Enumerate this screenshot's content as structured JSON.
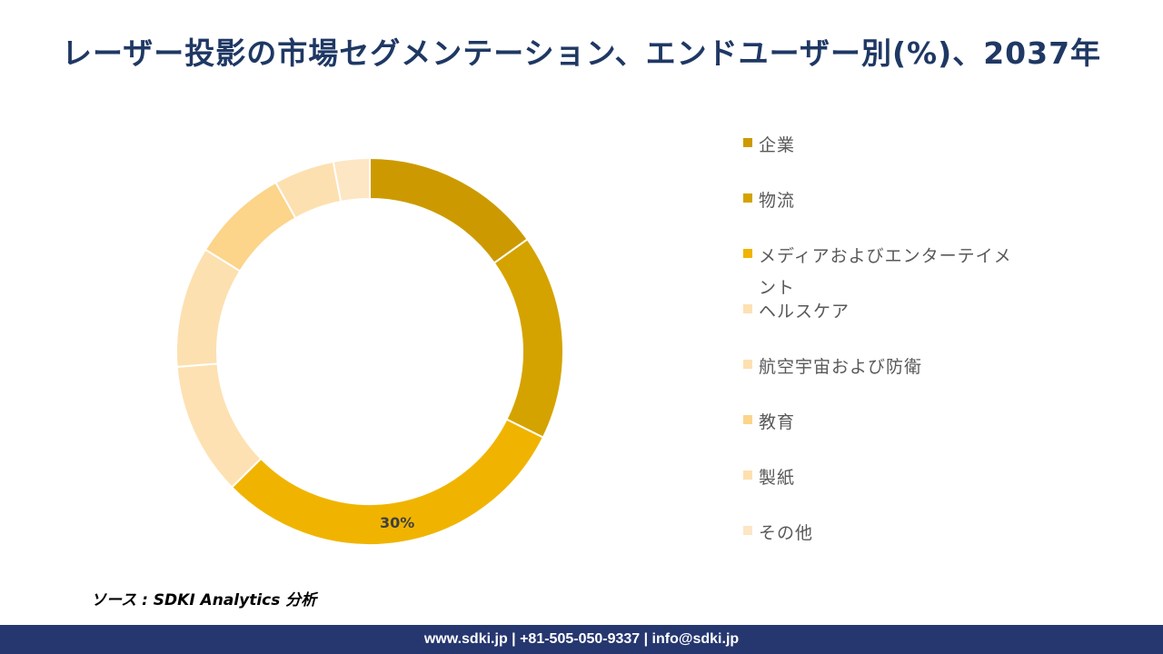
{
  "title": "レーザー投影の市場セグメンテーション、エンドユーザー別(%)、2037年",
  "chart_data": {
    "type": "pie",
    "style": "donut",
    "title": "レーザー投影の市場セグメンテーション、エンドユーザー別(%)、2037年",
    "legend_position": "right",
    "start_angle_deg": 0,
    "direction": "clockwise",
    "slices": [
      {
        "label": "企業",
        "value": 15,
        "color": "#cc9a00",
        "data_label": ""
      },
      {
        "label": "物流",
        "value": 17,
        "color": "#d4a300",
        "data_label": ""
      },
      {
        "label": "メディアおよびエンターテイメント",
        "value": 30,
        "color": "#f0b400",
        "data_label": "30%"
      },
      {
        "label": "ヘルスケア",
        "value": 11,
        "color": "#fde1b2",
        "data_label": ""
      },
      {
        "label": "航空宇宙および防衛",
        "value": 10,
        "color": "#fde0b0",
        "data_label": ""
      },
      {
        "label": "教育",
        "value": 8,
        "color": "#fcd48a",
        "data_label": ""
      },
      {
        "label": "製紙",
        "value": 5,
        "color": "#fde0b0",
        "data_label": ""
      },
      {
        "label": "その他",
        "value": 3,
        "color": "#fde6c4",
        "data_label": ""
      }
    ]
  },
  "source": "ソース : SDKI Analytics 分析",
  "footer": "www.sdki.jp | +81-505-050-9337 | info@sdki.jp"
}
